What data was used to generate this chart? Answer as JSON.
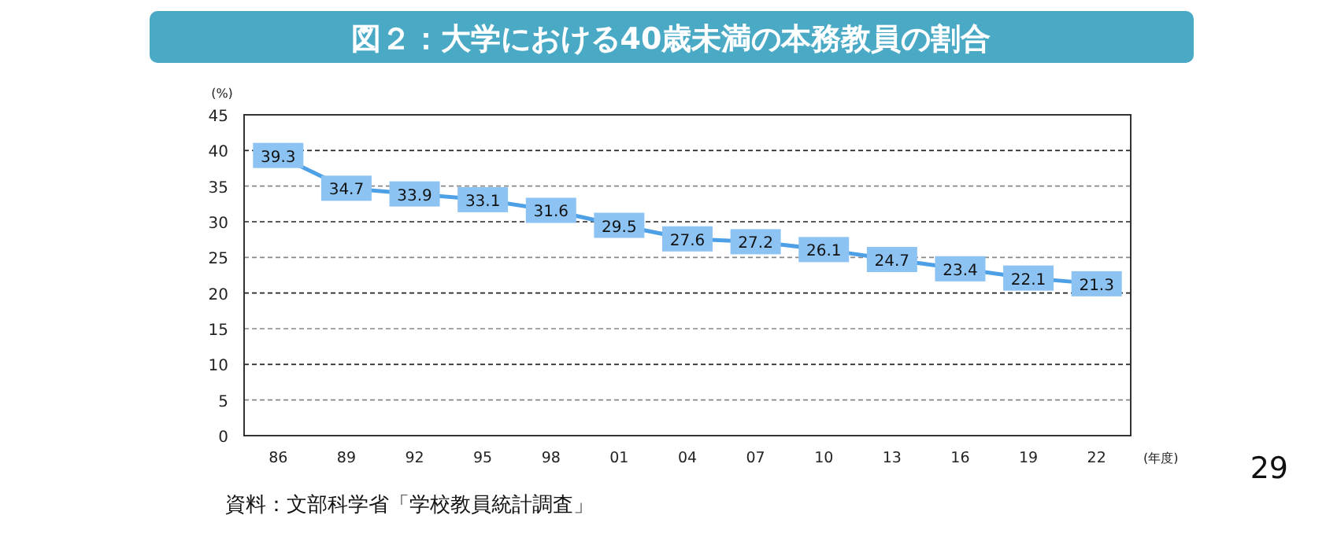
{
  "chart_data": {
    "type": "line",
    "title": "図２：大学における40歳未満の本務教員の割合",
    "ylabel": "(%)",
    "xlabel": "(年度)",
    "categories": [
      "86",
      "89",
      "92",
      "95",
      "98",
      "01",
      "04",
      "07",
      "10",
      "13",
      "16",
      "19",
      "22"
    ],
    "values": [
      39.3,
      34.7,
      33.9,
      33.1,
      31.6,
      29.5,
      27.6,
      27.2,
      26.1,
      24.7,
      23.4,
      22.1,
      21.3
    ],
    "color": "#4d9fe6",
    "ylim": [
      0,
      45
    ],
    "yticks": [
      0,
      5,
      10,
      15,
      20,
      25,
      30,
      35,
      40,
      45
    ],
    "grid": "y",
    "data_labels": true,
    "marker": "square",
    "line_style": "solid",
    "annotations": [
      "資料：文部科学省「学校教員統計調査」",
      "29"
    ]
  }
}
